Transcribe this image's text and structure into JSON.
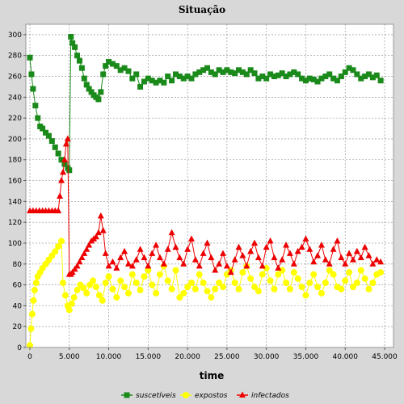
{
  "chart_data": {
    "type": "scatter",
    "title": "Situação",
    "xlabel": "time",
    "ylabel": "",
    "xlim": [
      0,
      45000
    ],
    "ylim": [
      0,
      310
    ],
    "x_ticks": [
      0,
      5000,
      10000,
      15000,
      20000,
      25000,
      30000,
      35000,
      40000,
      45000
    ],
    "x_tick_labels": [
      "0",
      "5.000",
      "10.000",
      "15.000",
      "20.000",
      "25.000",
      "30.000",
      "35.000",
      "40.000",
      "45.000"
    ],
    "y_ticks": [
      0,
      20,
      40,
      60,
      80,
      100,
      120,
      140,
      160,
      180,
      200,
      220,
      240,
      260,
      280,
      300
    ],
    "y_tick_labels": [
      "0",
      "20",
      "40",
      "60",
      "80",
      "100",
      "120",
      "140",
      "160",
      "180",
      "200",
      "220",
      "240",
      "260",
      "280",
      "300"
    ],
    "grid": true,
    "legend_position": "bottom",
    "series": [
      {
        "name": "suscetíveis",
        "color": "#1a8a1a",
        "marker": "square",
        "x": [
          0,
          200,
          400,
          700,
          1000,
          1300,
          1600,
          2000,
          2400,
          2800,
          3200,
          3600,
          4000,
          4400,
          4800,
          5000,
          5200,
          5400,
          5700,
          6000,
          6300,
          6600,
          6900,
          7200,
          7500,
          7800,
          8100,
          8400,
          8700,
          9000,
          9300,
          9600,
          10000,
          10500,
          11000,
          11500,
          12000,
          12500,
          13000,
          13500,
          14000,
          14500,
          15000,
          15500,
          16000,
          16500,
          17000,
          17500,
          18000,
          18500,
          19000,
          19500,
          20000,
          20500,
          21000,
          21500,
          22000,
          22500,
          23000,
          23500,
          24000,
          24500,
          25000,
          25500,
          26000,
          26500,
          27000,
          27500,
          28000,
          28500,
          29000,
          29500,
          30000,
          30500,
          31000,
          31500,
          32000,
          32500,
          33000,
          33500,
          34000,
          34500,
          35000,
          35500,
          36000,
          36500,
          37000,
          37500,
          38000,
          38500,
          39000,
          39500,
          40000,
          40500,
          41000,
          41500,
          42000,
          42500,
          43000,
          43500,
          44000,
          44500
        ],
        "y": [
          278,
          262,
          248,
          232,
          220,
          212,
          210,
          206,
          203,
          198,
          192,
          186,
          180,
          176,
          172,
          170,
          298,
          292,
          288,
          280,
          275,
          268,
          258,
          252,
          248,
          245,
          242,
          240,
          238,
          245,
          262,
          270,
          274,
          272,
          270,
          266,
          268,
          265,
          258,
          262,
          250,
          255,
          258,
          256,
          254,
          256,
          254,
          260,
          256,
          262,
          260,
          258,
          260,
          258,
          262,
          264,
          266,
          268,
          264,
          262,
          266,
          264,
          266,
          264,
          263,
          266,
          264,
          262,
          266,
          263,
          258,
          260,
          258,
          262,
          260,
          261,
          263,
          260,
          262,
          264,
          262,
          258,
          256,
          258,
          257,
          255,
          258,
          260,
          262,
          258,
          256,
          260,
          264,
          268,
          266,
          262,
          258,
          260,
          262,
          259,
          261,
          256
        ]
      },
      {
        "name": "expostos",
        "color": "#ffff00",
        "marker": "circle",
        "x": [
          0,
          150,
          300,
          450,
          600,
          800,
          1000,
          1300,
          1600,
          2000,
          2400,
          2800,
          3200,
          3600,
          4000,
          4200,
          4500,
          4800,
          5000,
          5300,
          5600,
          6000,
          6400,
          6800,
          7200,
          7600,
          8000,
          8400,
          8800,
          9200,
          9600,
          10000,
          10500,
          11000,
          11500,
          12000,
          12500,
          13000,
          13500,
          14000,
          14500,
          15000,
          15500,
          16000,
          16500,
          17000,
          17500,
          18000,
          18500,
          19000,
          19500,
          20000,
          20500,
          21000,
          21500,
          22000,
          22500,
          23000,
          23500,
          24000,
          24500,
          25000,
          25500,
          26000,
          26500,
          27000,
          27500,
          28000,
          28500,
          29000,
          29500,
          30000,
          30500,
          31000,
          31500,
          32000,
          32500,
          33000,
          33500,
          34000,
          34500,
          35000,
          35500,
          36000,
          36500,
          37000,
          37500,
          38000,
          38500,
          39000,
          39500,
          40000,
          40500,
          41000,
          41500,
          42000,
          42500,
          43000,
          43500,
          44000,
          44500
        ],
        "y": [
          2,
          18,
          32,
          45,
          55,
          62,
          68,
          72,
          76,
          80,
          84,
          88,
          92,
          97,
          102,
          62,
          50,
          40,
          36,
          42,
          48,
          55,
          60,
          57,
          52,
          60,
          64,
          58,
          50,
          45,
          62,
          68,
          56,
          48,
          64,
          58,
          52,
          70,
          62,
          55,
          68,
          74,
          60,
          52,
          70,
          78,
          64,
          56,
          74,
          48,
          52,
          58,
          62,
          56,
          70,
          62,
          54,
          48,
          56,
          62,
          58,
          70,
          74,
          62,
          56,
          72,
          78,
          66,
          58,
          54,
          70,
          76,
          64,
          56,
          70,
          74,
          62,
          56,
          72,
          66,
          58,
          50,
          62,
          70,
          58,
          52,
          62,
          74,
          70,
          58,
          56,
          64,
          72,
          58,
          62,
          74,
          66,
          56,
          62,
          70,
          72
        ]
      },
      {
        "name": "infectados",
        "color": "#ee0000",
        "marker": "triangle",
        "x": [
          0,
          400,
          800,
          1200,
          1600,
          2000,
          2400,
          2800,
          3200,
          3600,
          3800,
          4000,
          4200,
          4400,
          4600,
          4800,
          5000,
          5200,
          5400,
          5700,
          6000,
          6300,
          6600,
          6900,
          7200,
          7500,
          7800,
          8100,
          8400,
          8700,
          9000,
          9300,
          9600,
          10000,
          10500,
          11000,
          11500,
          12000,
          12500,
          13000,
          13500,
          14000,
          14500,
          15000,
          15500,
          16000,
          16500,
          17000,
          17500,
          18000,
          18500,
          19000,
          19500,
          20000,
          20500,
          21000,
          21500,
          22000,
          22500,
          23000,
          23500,
          24000,
          24500,
          25000,
          25500,
          26000,
          26500,
          27000,
          27500,
          28000,
          28500,
          29000,
          29500,
          30000,
          30500,
          31000,
          31500,
          32000,
          32500,
          33000,
          33500,
          34000,
          34500,
          35000,
          35500,
          36000,
          36500,
          37000,
          37500,
          38000,
          38500,
          39000,
          39500,
          40000,
          40500,
          41000,
          41500,
          42000,
          42500,
          43000,
          43500,
          44000,
          44500
        ],
        "y": [
          131,
          131,
          131,
          131,
          131,
          131,
          131,
          131,
          131,
          131,
          145,
          160,
          168,
          180,
          195,
          200,
          70,
          70,
          72,
          75,
          78,
          82,
          86,
          90,
          94,
          98,
          102,
          104,
          106,
          110,
          126,
          112,
          90,
          78,
          82,
          76,
          86,
          92,
          80,
          78,
          84,
          94,
          86,
          78,
          90,
          98,
          86,
          80,
          94,
          110,
          96,
          86,
          80,
          94,
          104,
          84,
          78,
          90,
          100,
          86,
          74,
          80,
          90,
          78,
          72,
          84,
          96,
          88,
          78,
          92,
          100,
          86,
          78,
          96,
          102,
          86,
          76,
          84,
          98,
          90,
          80,
          92,
          96,
          104,
          94,
          82,
          88,
          98,
          84,
          80,
          94,
          102,
          86,
          80,
          90,
          84,
          92,
          86,
          96,
          88,
          80,
          84,
          82
        ]
      }
    ]
  }
}
